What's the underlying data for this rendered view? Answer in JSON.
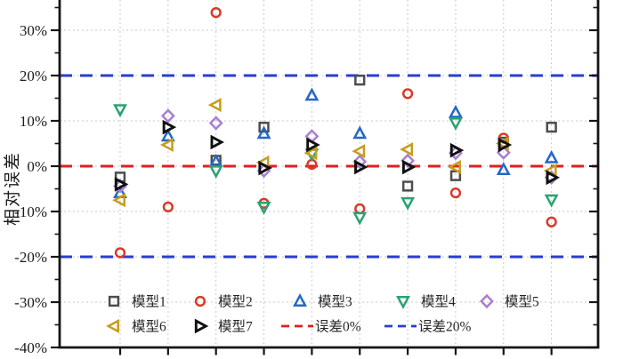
{
  "chart_data": {
    "type": "scatter",
    "title": "",
    "xlabel": "",
    "ylabel": "相对误差",
    "ylim": [
      -40,
      37
    ],
    "grid": true,
    "y_ticks": [
      30,
      20,
      10,
      0,
      -10,
      -20,
      -30,
      -40
    ],
    "y_tick_labels": [
      "30%",
      "20%",
      "10%",
      "0%",
      "-10%",
      "-20%",
      "-30%",
      "-40%"
    ],
    "x": [
      1,
      2,
      3,
      4,
      5,
      6,
      7,
      8,
      9,
      10
    ],
    "x_tick_labels": [],
    "series": [
      {
        "key": "model1",
        "name": "模型1",
        "marker": "square",
        "color": "#4d4d4d",
        "values": [
          -2.4,
          null,
          1.3,
          8.6,
          null,
          19.0,
          -4.4,
          -2.1,
          5.3,
          8.6
        ]
      },
      {
        "key": "model2",
        "name": "模型2",
        "marker": "circle",
        "color": "#d93a2b",
        "values": [
          -19.1,
          -9.0,
          33.9,
          -8.2,
          0.4,
          -9.4,
          16.0,
          -5.9,
          6.2,
          -12.3
        ]
      },
      {
        "key": "model3",
        "name": "模型3",
        "marker": "triangle-up",
        "color": "#2468c4",
        "values": [
          -5.9,
          6.6,
          1.0,
          7.2,
          15.6,
          7.2,
          null,
          11.8,
          -0.8,
          1.8
        ]
      },
      {
        "key": "model4",
        "name": "模型4",
        "marker": "triangle-down",
        "color": "#2aa371",
        "values": [
          12.5,
          null,
          -1.0,
          -9.0,
          2.7,
          -11.3,
          -8.0,
          9.6,
          null,
          -7.4
        ]
      },
      {
        "key": "model5",
        "name": "模型5",
        "marker": "diamond",
        "color": "#a87fd2",
        "values": [
          -4.4,
          11.1,
          9.5,
          -1.0,
          6.6,
          1.0,
          1.2,
          2.9,
          3.0,
          -2.5
        ]
      },
      {
        "key": "model6",
        "name": "模型6",
        "marker": "triangle-left",
        "color": "#c89c1e",
        "values": [
          -7.5,
          4.7,
          13.5,
          0.8,
          2.9,
          3.3,
          3.7,
          -0.2,
          5.0,
          -1.0
        ]
      },
      {
        "key": "model7",
        "name": "模型7",
        "marker": "triangle-right",
        "color": "#101010",
        "values": [
          -4.0,
          8.6,
          5.3,
          -0.4,
          4.7,
          -0.2,
          -0.2,
          3.5,
          4.7,
          -2.5
        ]
      }
    ],
    "reference_lines": [
      {
        "key": "err0",
        "label": "误差0%",
        "value": 0,
        "color": "#e01f1f",
        "style": "dashed"
      },
      {
        "key": "err20",
        "label": "误差20%",
        "value": 20,
        "color": "#2a3cd4",
        "style": "dashed"
      },
      {
        "key": "err20neg",
        "label": "误差20%",
        "value": -20,
        "color": "#2a3cd4",
        "style": "dashed"
      }
    ],
    "legend": {
      "position": "bottom-inside",
      "row1": [
        "模型1",
        "模型2",
        "模型3",
        "模型4",
        "模型5"
      ],
      "row2_series": [
        "模型6",
        "模型7"
      ],
      "row2_lines": [
        "误差0%",
        "误差20%"
      ]
    },
    "axis_color": "#151515",
    "gridline_color": "#c9c9c9"
  }
}
